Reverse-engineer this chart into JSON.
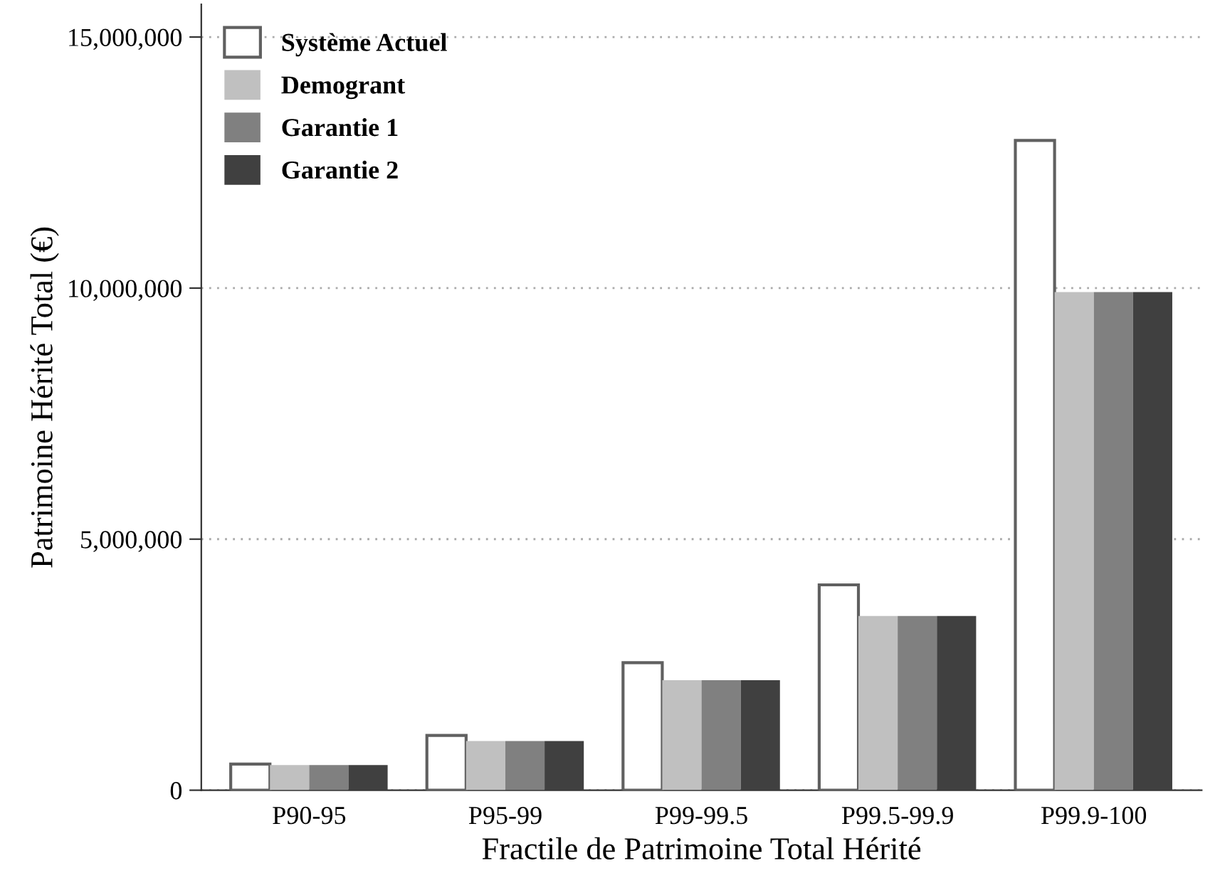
{
  "chart_data": {
    "type": "bar",
    "xlabel": "Fractile de Patrimoine Total Hérité",
    "ylabel": "Patrimoine Hérité Total (€)",
    "categories": [
      "P90-95",
      "P95-99",
      "P99-99.5",
      "P99.5-99.9",
      "P99.9-100"
    ],
    "series": [
      {
        "name": "Système Actuel",
        "color": "#ffffff",
        "values": [
          520000,
          1090000,
          2540000,
          4090000,
          12940000
        ]
      },
      {
        "name": "Demogrant",
        "color": "#c0c0c0",
        "values": [
          500000,
          980000,
          2190000,
          3470000,
          9920000
        ]
      },
      {
        "name": "Garantie 1",
        "color": "#808080",
        "values": [
          500000,
          980000,
          2190000,
          3470000,
          9920000
        ]
      },
      {
        "name": "Garantie 2",
        "color": "#404040",
        "values": [
          500000,
          980000,
          2190000,
          3470000,
          9920000
        ]
      }
    ],
    "ylim": [
      0,
      15650000
    ],
    "yticks": [
      {
        "value": 0,
        "label": "0"
      },
      {
        "value": 5000000,
        "label": "5,000,000"
      },
      {
        "value": 10000000,
        "label": "10,000,000"
      },
      {
        "value": 15000000,
        "label": "15,000,000"
      }
    ],
    "grid": "y",
    "legend": "top left"
  }
}
